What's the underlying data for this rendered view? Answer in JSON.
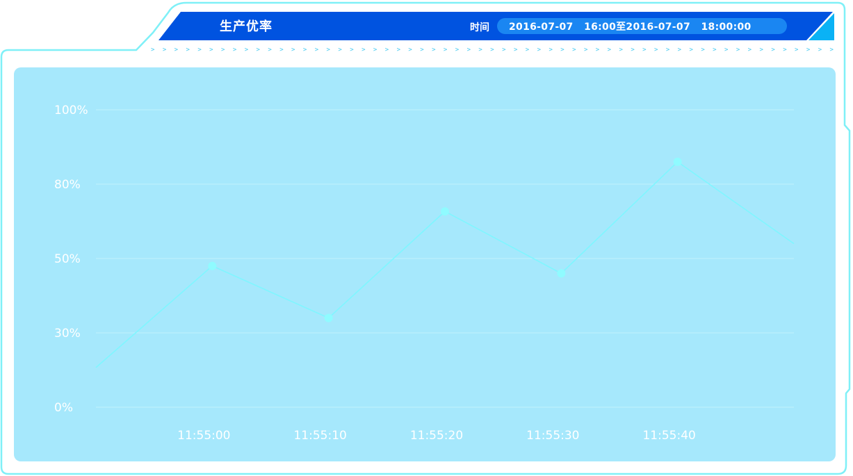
{
  "header": {
    "title": "生产优率",
    "time_label": "时间",
    "time_range": "2016-07-07   16:00至2016-07-07   18:00:00",
    "arrow_glyph": ">"
  },
  "colors": {
    "header_blue": "#0053e0",
    "pill_blue": "#1a86f2",
    "frame_cyan": "#7ff0f7",
    "panel_bg": "#a6e8fc",
    "line": "#7ff6ff",
    "point": "#8ffbff",
    "grid": "#c3f2fd",
    "text": "#ffffff"
  },
  "chart_data": {
    "type": "line",
    "title": "",
    "xlabel": "",
    "ylabel": "",
    "y_ticks": [
      "100%",
      "80%",
      "50%",
      "30%",
      "0%"
    ],
    "categories": [
      "11:55:00",
      "11:55:10",
      "11:55:20",
      "11:55:30",
      "11:55:40"
    ],
    "series": [
      {
        "values": [
          {
            "x": 0,
            "y": 16
          },
          {
            "x": 1,
            "y": 48
          },
          {
            "x": 2,
            "y": 34
          },
          {
            "x": 3,
            "y": 69
          },
          {
            "x": 4,
            "y": 46
          },
          {
            "x": 5,
            "y": 86
          },
          {
            "x": 6,
            "y": 56
          }
        ]
      }
    ],
    "grid": true,
    "legend": "none"
  }
}
